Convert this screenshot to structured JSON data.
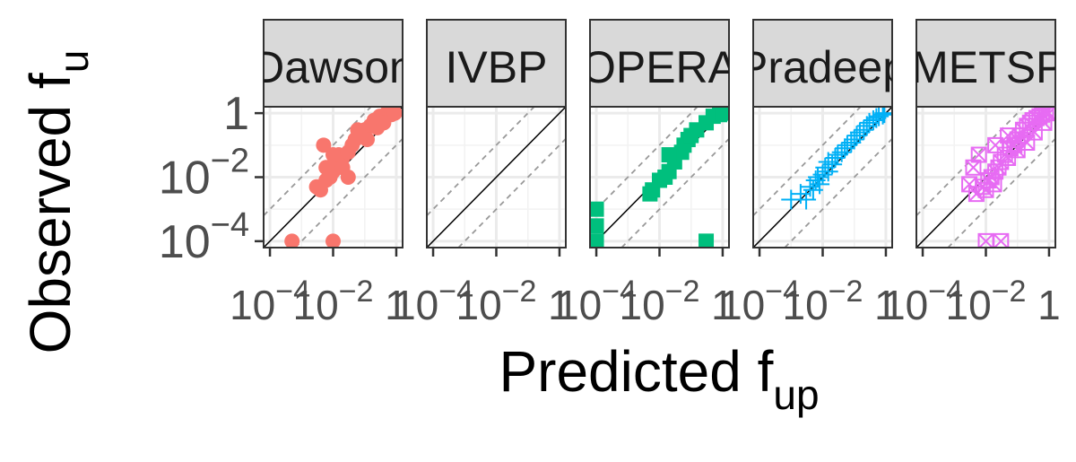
{
  "chart_data": {
    "type": "scatter",
    "x_label": {
      "main": "Predicted f",
      "sub": "up"
    },
    "y_label": {
      "main": "Observed f",
      "sub": "u"
    },
    "axis_scale": "log10",
    "x_ticks": [
      {
        "value": 0.0001,
        "base": "10",
        "exp": "−4"
      },
      {
        "value": 0.01,
        "base": "10",
        "exp": "−2"
      },
      {
        "value": 1,
        "base": "1",
        "exp": ""
      }
    ],
    "y_ticks": [
      {
        "value": 0.0001,
        "base": "10",
        "exp": "−4"
      },
      {
        "value": 0.01,
        "base": "10",
        "exp": "−2"
      },
      {
        "value": 1,
        "base": "1",
        "exp": ""
      }
    ],
    "reference_lines": {
      "identity": "solid black",
      "tenfold": "dashed grey"
    },
    "grid": true,
    "panels": [
      {
        "strip_label": "Dawson",
        "color": "#F8766D",
        "shape": "circle",
        "points": [
          [
            0.0005,
            0.0001
          ],
          [
            0.01,
            0.0001
          ],
          [
            0.005,
            0.1
          ],
          [
            0.003,
            0.005
          ],
          [
            0.004,
            0.004
          ],
          [
            0.006,
            0.008
          ],
          [
            0.008,
            0.01
          ],
          [
            0.006,
            0.02
          ],
          [
            0.01,
            0.015
          ],
          [
            0.012,
            0.03
          ],
          [
            0.015,
            0.05
          ],
          [
            0.02,
            0.04
          ],
          [
            0.03,
            0.06
          ],
          [
            0.04,
            0.1
          ],
          [
            0.05,
            0.15
          ],
          [
            0.08,
            0.2
          ],
          [
            0.1,
            0.3
          ],
          [
            0.15,
            0.4
          ],
          [
            0.2,
            0.6
          ],
          [
            0.3,
            0.8
          ],
          [
            0.5,
            1
          ],
          [
            0.7,
            0.9
          ],
          [
            0.9,
            1
          ],
          [
            0.02,
            0.02
          ],
          [
            0.03,
            0.01
          ],
          [
            0.01,
            0.05
          ],
          [
            0.06,
            0.3
          ],
          [
            0.12,
            0.15
          ],
          [
            0.25,
            0.35
          ],
          [
            0.4,
            0.5
          ]
        ]
      },
      {
        "strip_label": "IVBP",
        "color": "#A3A500",
        "shape": "triangle",
        "points": []
      },
      {
        "strip_label": "OPERA",
        "color": "#00BF7D",
        "shape": "square",
        "points": [
          [
            0.0001,
            0.001
          ],
          [
            0.0001,
            0.0003
          ],
          [
            0.0001,
            0.0001
          ],
          [
            0.3,
            0.0001
          ],
          [
            0.005,
            0.003
          ],
          [
            0.006,
            0.004
          ],
          [
            0.01,
            0.008
          ],
          [
            0.015,
            0.01
          ],
          [
            0.02,
            0.015
          ],
          [
            0.03,
            0.03
          ],
          [
            0.05,
            0.06
          ],
          [
            0.06,
            0.1
          ],
          [
            0.08,
            0.15
          ],
          [
            0.1,
            0.2
          ],
          [
            0.15,
            0.3
          ],
          [
            0.3,
            0.5
          ],
          [
            0.5,
            0.8
          ],
          [
            0.8,
            0.9
          ],
          [
            1,
            1
          ],
          [
            0.02,
            0.05
          ]
        ]
      },
      {
        "strip_label": "Pradeep",
        "color": "#00B0F6",
        "shape": "plus",
        "points": [
          [
            0.001,
            0.002
          ],
          [
            0.002,
            0.003
          ],
          [
            0.003,
            0.002
          ],
          [
            0.004,
            0.005
          ],
          [
            0.005,
            0.004
          ],
          [
            0.006,
            0.008
          ],
          [
            0.007,
            0.01
          ],
          [
            0.008,
            0.006
          ],
          [
            0.01,
            0.012
          ],
          [
            0.012,
            0.02
          ],
          [
            0.015,
            0.03
          ],
          [
            0.02,
            0.025
          ],
          [
            0.025,
            0.04
          ],
          [
            0.03,
            0.05
          ],
          [
            0.04,
            0.06
          ],
          [
            0.05,
            0.08
          ],
          [
            0.06,
            0.1
          ],
          [
            0.08,
            0.12
          ],
          [
            0.1,
            0.15
          ],
          [
            0.12,
            0.2
          ],
          [
            0.15,
            0.25
          ],
          [
            0.2,
            0.3
          ],
          [
            0.25,
            0.4
          ],
          [
            0.3,
            0.5
          ],
          [
            0.4,
            0.6
          ],
          [
            0.5,
            0.7
          ],
          [
            0.6,
            0.8
          ],
          [
            0.8,
            0.9
          ],
          [
            0.9,
            1
          ],
          [
            0.015,
            0.015
          ]
        ]
      },
      {
        "strip_label": "ADMETSPlus",
        "color": "#E76BF3",
        "shape": "square-cross",
        "points": [
          [
            0.01,
            0.0001
          ],
          [
            0.03,
            0.0001
          ],
          [
            0.005,
            0.003
          ],
          [
            0.008,
            0.005
          ],
          [
            0.01,
            0.004
          ],
          [
            0.012,
            0.008
          ],
          [
            0.015,
            0.01
          ],
          [
            0.018,
            0.006
          ],
          [
            0.02,
            0.015
          ],
          [
            0.025,
            0.02
          ],
          [
            0.03,
            0.03
          ],
          [
            0.04,
            0.05
          ],
          [
            0.05,
            0.04
          ],
          [
            0.06,
            0.08
          ],
          [
            0.08,
            0.1
          ],
          [
            0.1,
            0.15
          ],
          [
            0.12,
            0.2
          ],
          [
            0.15,
            0.3
          ],
          [
            0.2,
            0.4
          ],
          [
            0.25,
            0.5
          ],
          [
            0.3,
            0.6
          ],
          [
            0.4,
            0.7
          ],
          [
            0.5,
            0.8
          ],
          [
            0.6,
            0.9
          ],
          [
            0.8,
            1
          ],
          [
            1,
            1
          ],
          [
            0.7,
            0.5
          ],
          [
            0.35,
            0.25
          ],
          [
            0.05,
            0.2
          ],
          [
            0.02,
            0.1
          ],
          [
            0.006,
            0.05
          ],
          [
            0.004,
            0.02
          ],
          [
            0.003,
            0.006
          ],
          [
            0.1,
            0.07
          ],
          [
            0.2,
            0.12
          ]
        ]
      }
    ]
  }
}
